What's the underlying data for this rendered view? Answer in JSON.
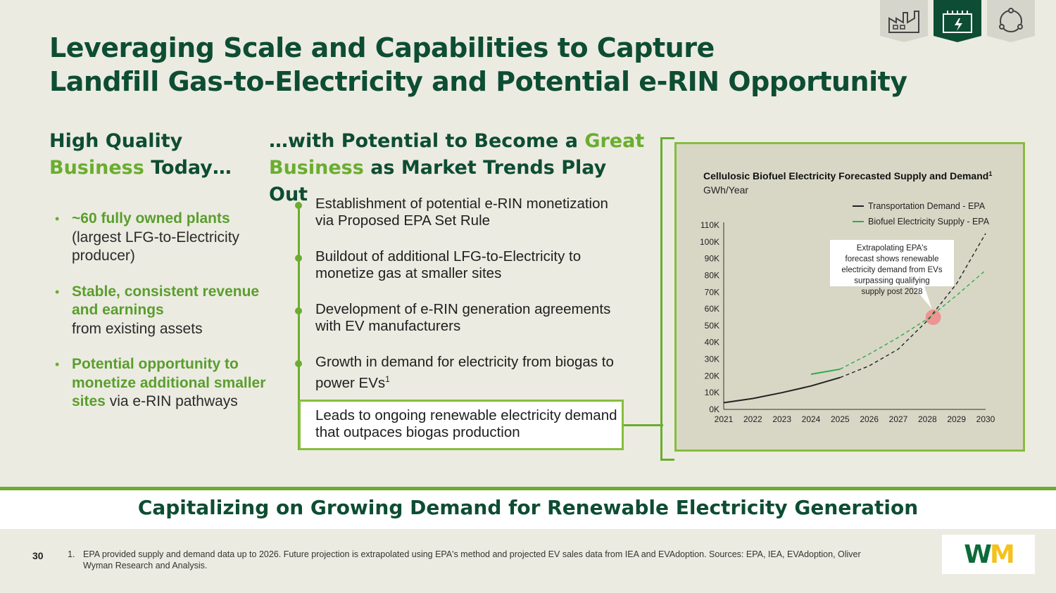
{
  "header": {
    "title_line1": "Leveraging Scale and Capabilities to Capture",
    "title_line2": "Landfill Gas-to-Electricity and Potential e-RIN Opportunity",
    "icons": [
      "factory-icon",
      "power-plant-icon",
      "cycle-icon"
    ]
  },
  "left": {
    "heading_line1": "High Quality",
    "heading_green": "Business",
    "heading_rest": " Today…",
    "bullets": [
      {
        "highlight": "~60 fully owned plants",
        "rest": "(largest LFG-to-Electricity producer)"
      },
      {
        "highlight": "Stable, consistent revenue and earnings",
        "rest": "from existing assets"
      },
      {
        "highlight": "Potential opportunity to monetize additional smaller sites",
        "rest": "via e-RIN pathways"
      }
    ]
  },
  "middle": {
    "heading_part1": "…with Potential to Become a ",
    "heading_green1": "Great",
    "heading_green2": "Business",
    "heading_part2": " as Market Trends Play Out",
    "items": [
      "Establishment of potential e-RIN monetization via Proposed EPA Set Rule",
      "Buildout of additional LFG-to-Electricity to monetize gas at smaller sites",
      "Development of e-RIN generation agreements with EV manufacturers",
      "Growth in demand for electricity from biogas to power EVs",
      "Leads to ongoing renewable electricity demand that outpaces biogas production"
    ],
    "item4_sup": "1"
  },
  "chart_data": {
    "type": "line",
    "title": "Cellulosic Biofuel Electricity Forecasted Supply and Demand",
    "title_sup": "1",
    "ylabel": "GWh/Year",
    "x": [
      "2021",
      "2022",
      "2023",
      "2024",
      "2025",
      "2026",
      "2027",
      "2028",
      "2029",
      "2030"
    ],
    "yticks": [
      "0K",
      "10K",
      "20K",
      "30K",
      "40K",
      "50K",
      "60K",
      "70K",
      "80K",
      "90K",
      "100K",
      "110K"
    ],
    "ylim": [
      0,
      110000
    ],
    "grid": false,
    "legend_position": "top-right",
    "series": [
      {
        "name": "Transportation Demand - EPA",
        "color": "#222222",
        "actual": [
          [
            2021,
            4000
          ],
          [
            2022,
            6500
          ],
          [
            2023,
            10000
          ],
          [
            2024,
            14000
          ],
          [
            2025,
            19000
          ]
        ],
        "projected": [
          [
            2025,
            19000
          ],
          [
            2026,
            26000
          ],
          [
            2027,
            36000
          ],
          [
            2028,
            53000
          ],
          [
            2029,
            75000
          ],
          [
            2030,
            105000
          ]
        ]
      },
      {
        "name": "Biofuel Electricity Supply - EPA",
        "color": "#2faa4a",
        "actual": [
          [
            2024,
            21000
          ],
          [
            2025,
            24000
          ]
        ],
        "projected": [
          [
            2025,
            24000
          ],
          [
            2026,
            33000
          ],
          [
            2027,
            43000
          ],
          [
            2028,
            54000
          ],
          [
            2029,
            68000
          ],
          [
            2030,
            83000
          ]
        ]
      }
    ],
    "annotation": "Extrapolating EPA's forecast shows renewable electricity demand from EVs surpassing qualifying supply post 2028",
    "crossover_marker": {
      "x": 2028.2,
      "y": 55000,
      "color": "#f08a8a"
    }
  },
  "banner": {
    "text": "Capitalizing on Growing Demand for Renewable Electricity Generation"
  },
  "footer": {
    "page_number": "30",
    "footnote_number": "1.",
    "footnote_text": "EPA provided supply and demand data up to 2026. Future projection is extrapolated using EPA's method and projected EV sales data from IEA and EVAdoption. Sources: EPA, IEA, EVAdoption, Oliver Wyman Research and Analysis.",
    "logo_text_w": "W",
    "logo_text_m": "M"
  }
}
